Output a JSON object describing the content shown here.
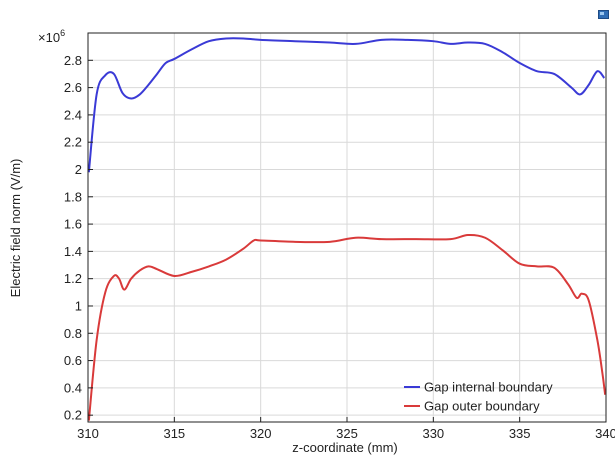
{
  "toolbar": {
    "icon": "export-image-icon"
  },
  "chart_data": {
    "type": "line",
    "title": "",
    "xlabel": "z-coordinate (mm)",
    "ylabel": "Electric field norm (V/m)",
    "y_multiplier_base": "×10",
    "y_multiplier_exponent": "6",
    "xlim": [
      310,
      340
    ],
    "ylim": [
      0.15,
      3.0
    ],
    "xticks": [
      310,
      315,
      320,
      325,
      330,
      335,
      340
    ],
    "xtick_labels": [
      "310",
      "315",
      "320",
      "325",
      "330",
      "335",
      "340"
    ],
    "yticks": [
      0.2,
      0.4,
      0.6,
      0.8,
      1,
      1.2,
      1.4,
      1.6,
      1.8,
      2,
      2.2,
      2.4,
      2.6,
      2.8
    ],
    "ytick_labels": [
      "0.2",
      "0.4",
      "0.6",
      "0.8",
      "1",
      "1.2",
      "1.4",
      "1.6",
      "1.8",
      "2",
      "2.2",
      "2.4",
      "2.6",
      "2.8"
    ],
    "grid": true,
    "legend_position": "bottom-right",
    "series": [
      {
        "name": "Gap internal boundary",
        "color": "#3a3ad6",
        "x": [
          310.05,
          310.5,
          311,
          311.5,
          312,
          312.5,
          313,
          313.5,
          314,
          314.5,
          315,
          316,
          317,
          318,
          319,
          320,
          322,
          324,
          325.5,
          327,
          328.5,
          330,
          331,
          332,
          333,
          334,
          335,
          336,
          337,
          338,
          338.5,
          339,
          339.5,
          339.9
        ],
        "y": [
          1.98,
          2.55,
          2.69,
          2.7,
          2.56,
          2.52,
          2.55,
          2.62,
          2.7,
          2.78,
          2.81,
          2.88,
          2.94,
          2.96,
          2.96,
          2.95,
          2.94,
          2.93,
          2.92,
          2.95,
          2.95,
          2.94,
          2.92,
          2.93,
          2.92,
          2.86,
          2.78,
          2.72,
          2.7,
          2.6,
          2.55,
          2.62,
          2.72,
          2.67
        ]
      },
      {
        "name": "Gap outer boundary",
        "color": "#d93a3a",
        "x": [
          310.05,
          310.5,
          311,
          311.5,
          311.8,
          312.1,
          312.5,
          313,
          313.5,
          314,
          315,
          316,
          317,
          318,
          319,
          319.6,
          320,
          322,
          324,
          325.5,
          327,
          329,
          331,
          332,
          333,
          334,
          335,
          336,
          337,
          337.8,
          338.3,
          338.6,
          339,
          339.5,
          339.8,
          339.95
        ],
        "y": [
          0.16,
          0.75,
          1.1,
          1.22,
          1.2,
          1.12,
          1.2,
          1.26,
          1.29,
          1.27,
          1.22,
          1.25,
          1.29,
          1.34,
          1.42,
          1.48,
          1.48,
          1.47,
          1.47,
          1.5,
          1.49,
          1.49,
          1.49,
          1.52,
          1.5,
          1.41,
          1.31,
          1.29,
          1.28,
          1.16,
          1.06,
          1.09,
          1.04,
          0.75,
          0.5,
          0.35
        ]
      }
    ]
  }
}
